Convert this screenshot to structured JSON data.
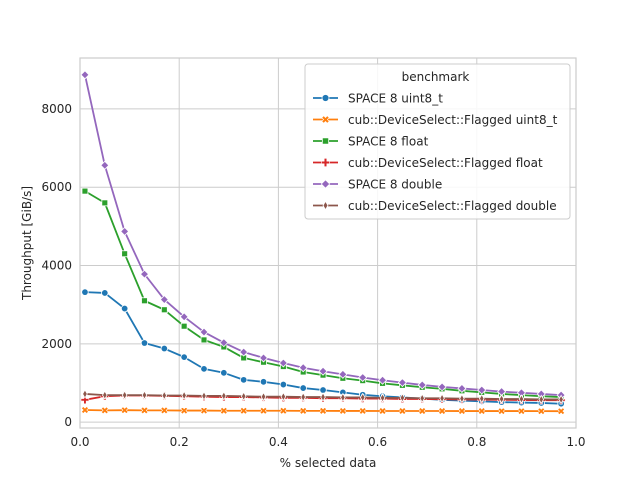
{
  "chart_data": {
    "type": "line",
    "title": "",
    "xlabel": "% selected data",
    "ylabel": "Throughput [GiB/s]",
    "xlim": [
      0,
      1.0
    ],
    "ylim": [
      -150,
      9300
    ],
    "xticks": [
      0.0,
      0.2,
      0.4,
      0.6,
      0.8,
      1.0
    ],
    "xtick_labels": [
      "0.0",
      "0.2",
      "0.4",
      "0.6",
      "0.8",
      "1.0"
    ],
    "yticks": [
      0,
      2000,
      4000,
      6000,
      8000
    ],
    "ytick_labels": [
      "0",
      "2000",
      "4000",
      "6000",
      "8000"
    ],
    "grid": true,
    "legend_title": "benchmark",
    "legend_position": "top-right",
    "x": [
      0.01,
      0.05,
      0.09,
      0.13,
      0.17,
      0.21,
      0.25,
      0.29,
      0.33,
      0.37,
      0.41,
      0.45,
      0.49,
      0.53,
      0.57,
      0.61,
      0.65,
      0.69,
      0.73,
      0.77,
      0.81,
      0.85,
      0.89,
      0.93,
      0.97
    ],
    "series": [
      {
        "name": "SPACE 8 uint8_t",
        "color": "#1f77b4",
        "marker": "circle",
        "values": [
          3320,
          3300,
          2900,
          2020,
          1880,
          1660,
          1360,
          1260,
          1080,
          1030,
          960,
          870,
          820,
          760,
          700,
          660,
          630,
          600,
          570,
          550,
          530,
          510,
          500,
          490,
          470
        ]
      },
      {
        "name": "cub::DeviceSelect::Flagged uint8_t",
        "color": "#ff7f0e",
        "marker": "x",
        "values": [
          310,
          300,
          305,
          300,
          300,
          295,
          295,
          290,
          290,
          290,
          290,
          288,
          288,
          286,
          286,
          285,
          285,
          284,
          284,
          283,
          283,
          282,
          282,
          281,
          280
        ]
      },
      {
        "name": "SPACE 8 float",
        "color": "#2ca02c",
        "marker": "square",
        "values": [
          5900,
          5600,
          4300,
          3100,
          2870,
          2450,
          2100,
          1920,
          1640,
          1530,
          1420,
          1280,
          1200,
          1120,
          1060,
          990,
          940,
          890,
          850,
          800,
          760,
          720,
          690,
          660,
          640
        ]
      },
      {
        "name": "cub::DeviceSelect::Flagged float",
        "color": "#d62728",
        "marker": "plus",
        "values": [
          570,
          660,
          680,
          680,
          670,
          660,
          650,
          640,
          640,
          630,
          620,
          620,
          610,
          610,
          600,
          600,
          590,
          590,
          585,
          580,
          575,
          570,
          565,
          560,
          560
        ]
      },
      {
        "name": "SPACE 8 double",
        "color": "#9467bd",
        "marker": "diamond",
        "values": [
          8870,
          6560,
          4870,
          3780,
          3130,
          2690,
          2300,
          2030,
          1790,
          1640,
          1510,
          1390,
          1300,
          1220,
          1140,
          1070,
          1010,
          950,
          900,
          860,
          820,
          780,
          750,
          720,
          690
        ]
      },
      {
        "name": "cub::DeviceSelect::Flagged double",
        "color": "#8c564b",
        "marker": "thin_diamond",
        "values": [
          720,
          690,
          690,
          690,
          680,
          680,
          670,
          670,
          660,
          650,
          650,
          640,
          640,
          630,
          630,
          620,
          620,
          610,
          610,
          600,
          600,
          590,
          590,
          580,
          580
        ]
      }
    ]
  }
}
